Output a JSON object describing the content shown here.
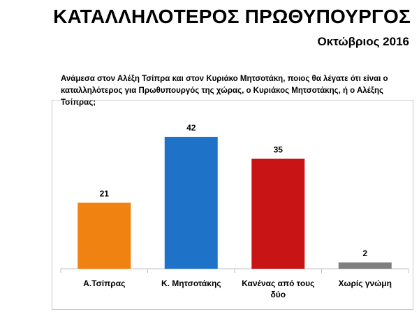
{
  "header": {
    "title": "ΚΑΤΑΛΛΗΛΟΤΕΡΟΣ ΠΡΩΘΥΠΟΥΡΓΟΣ",
    "subtitle": "Οκτώβριος 2016",
    "question": "Ανάμεσα στον Αλέξη Τσίπρα και στον Κυριάκο Μητσοτάκη, ποιος θα λέγατε ότι είναι ο καταλληλότερος για Πρωθυπουργός της χώρας, ο Κυριάκος Μητσοτάκης, ή ο Αλέξης Τσίπρας;"
  },
  "chart_data": {
    "type": "bar",
    "categories": [
      [
        "Α.Τσίπρας"
      ],
      [
        "Κ. Μητσοτάκης"
      ],
      [
        "Κανένας από τους",
        "δύο"
      ],
      [
        "Χωρίς γνώμη"
      ]
    ],
    "values": [
      21,
      42,
      35,
      2
    ],
    "colors": [
      "#f08212",
      "#1e73c8",
      "#c81414",
      "#7f7f7f"
    ],
    "ylim": [
      0,
      42
    ],
    "grid": false,
    "legend": false
  }
}
